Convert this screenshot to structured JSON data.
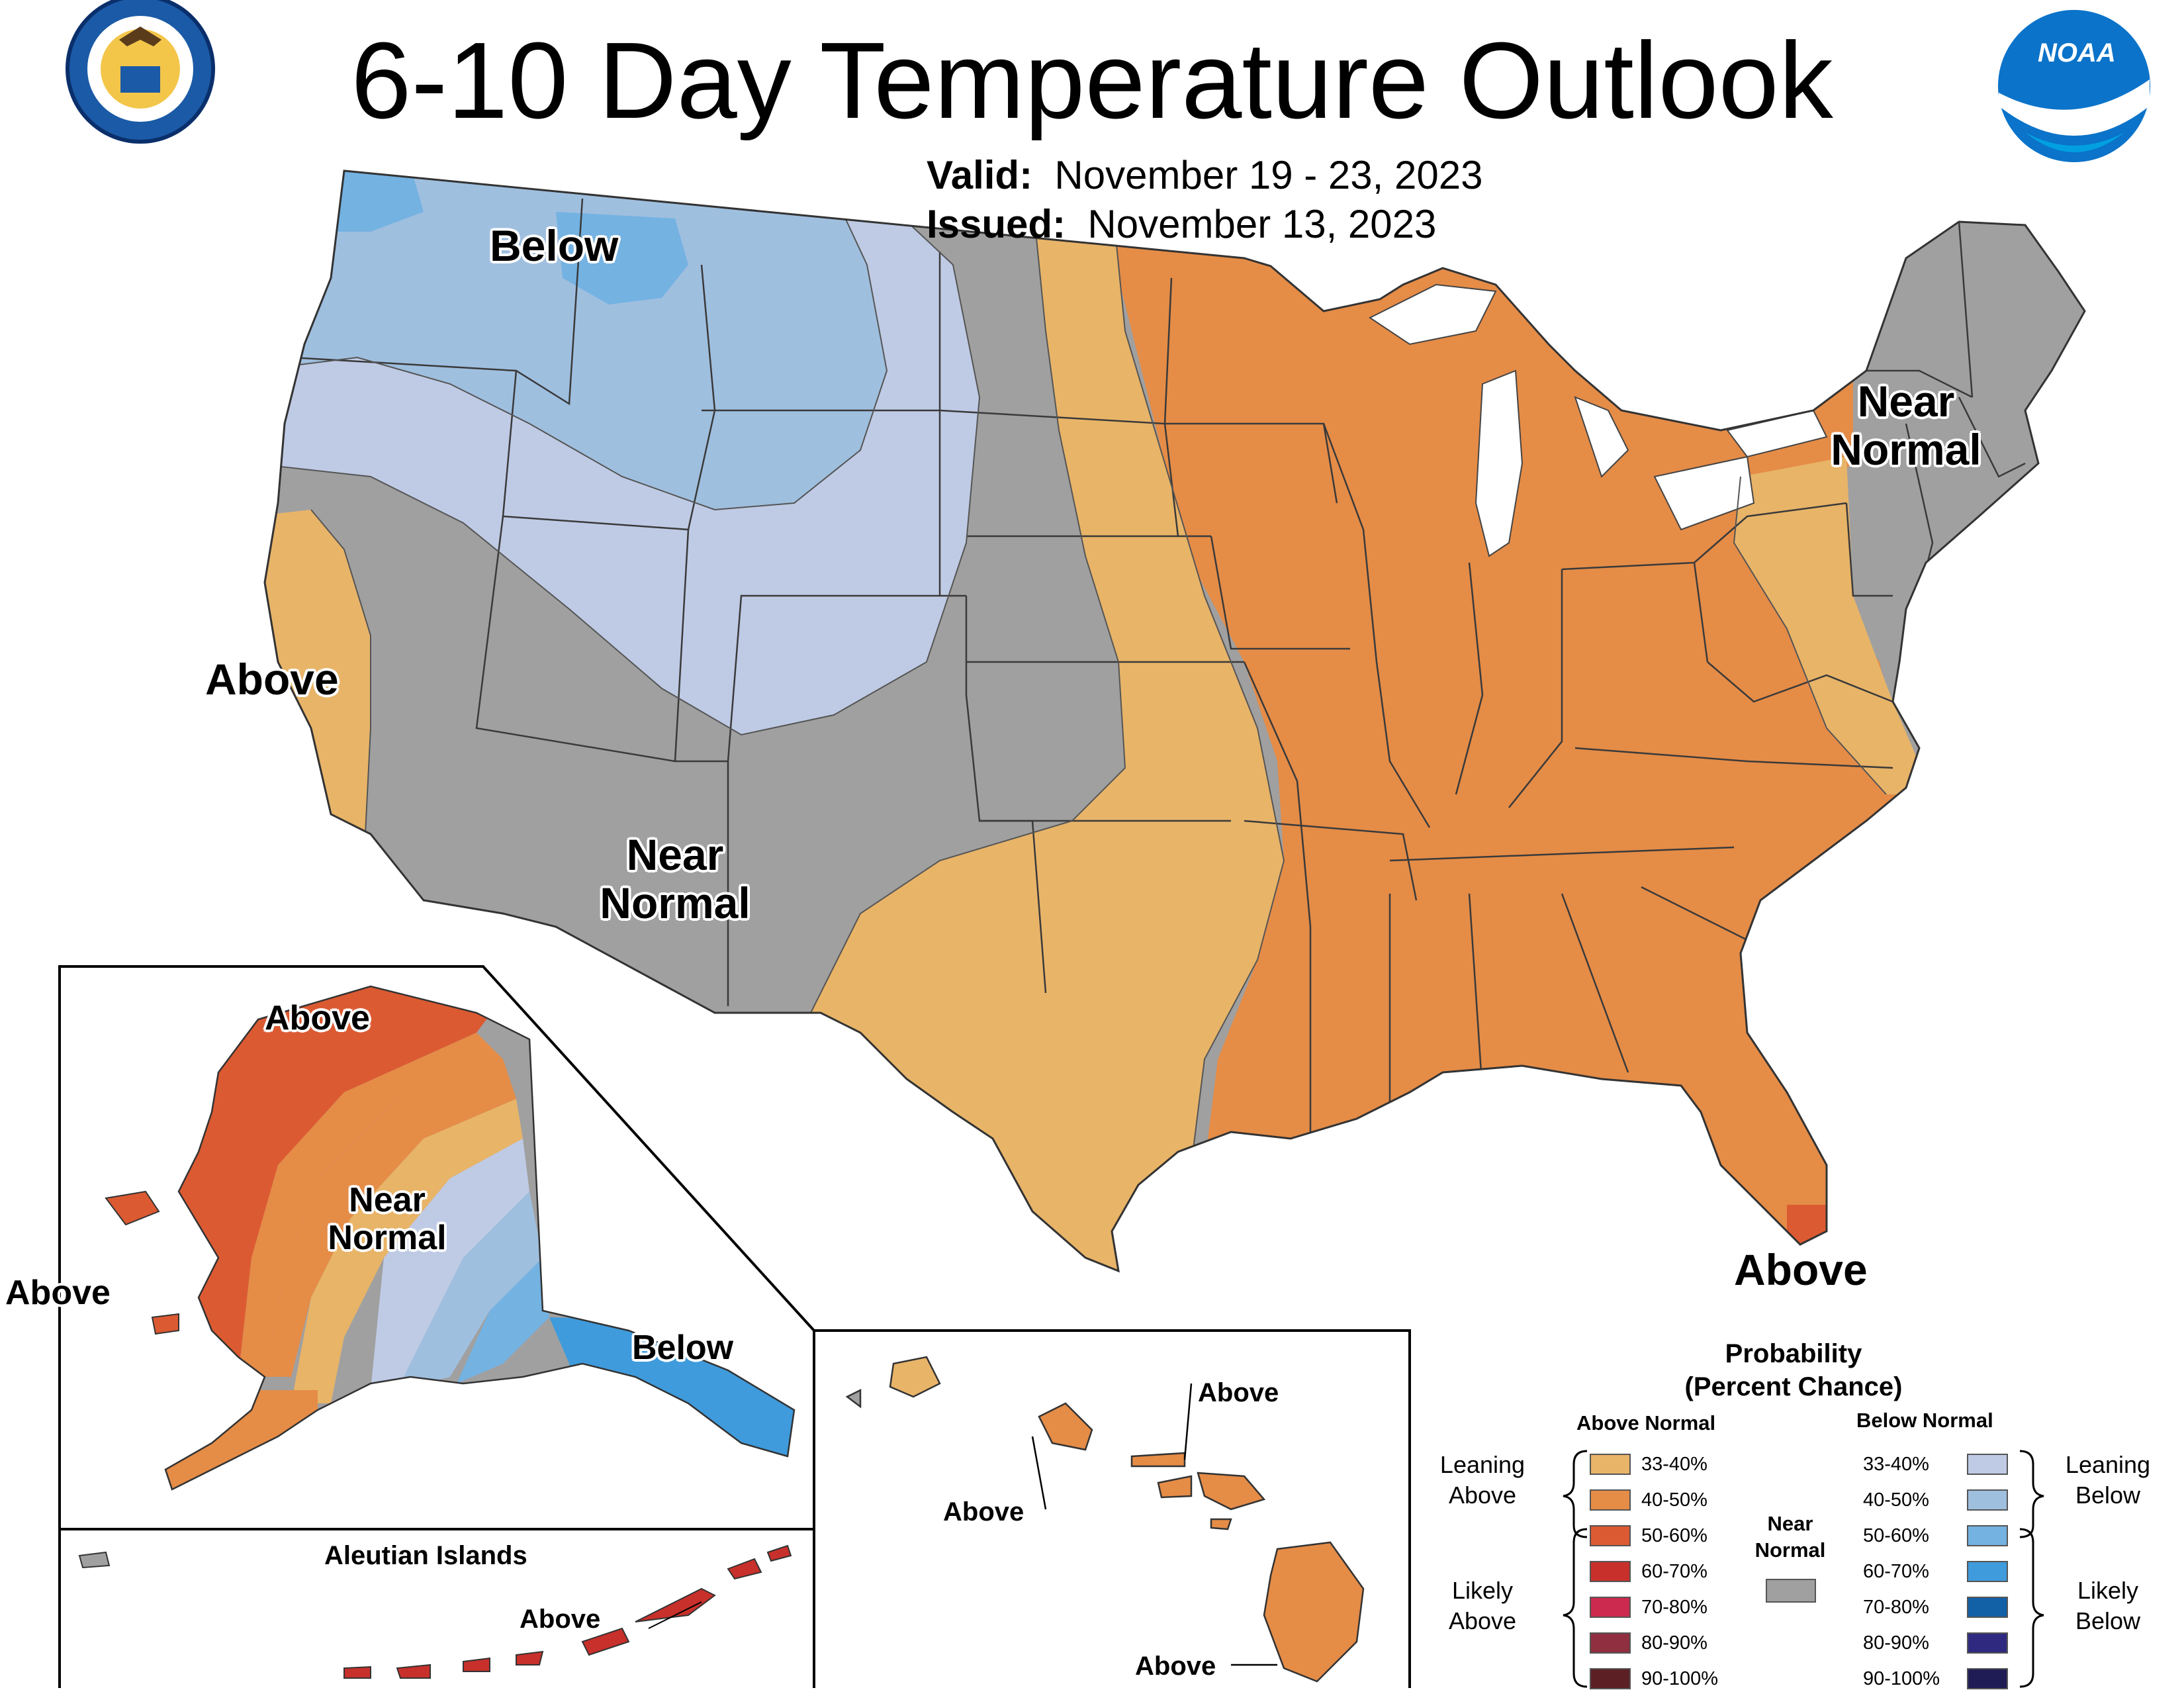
{
  "header": {
    "title": "6-10 Day Temperature Outlook",
    "valid_label": "Valid:",
    "valid_value": "November 19 - 23, 2023",
    "issued_label": "Issued:",
    "issued_value": "November 13, 2023"
  },
  "logos": {
    "left": "Department of Commerce seal",
    "right": "NOAA logo",
    "right_text": "NOAA"
  },
  "map_labels": {
    "below_nw": "Below",
    "above_west": "Above",
    "near_normal_sw_1": "Near",
    "near_normal_sw_2": "Normal",
    "near_normal_ne_1": "Near",
    "near_normal_ne_2": "Normal",
    "above_se": "Above",
    "ak_above_north": "Above",
    "ak_near_1": "Near",
    "ak_near_2": "Normal",
    "ak_above_west": "Above",
    "ak_below_se": "Below",
    "aleutian_title": "Aleutian Islands",
    "aleutian_above": "Above",
    "hi_above_1": "Above",
    "hi_above_2": "Above",
    "hi_above_3": "Above"
  },
  "legend": {
    "title_1": "Probability",
    "title_2": "(Percent Chance)",
    "above_head": "Above Normal",
    "below_head": "Below Normal",
    "near_1": "Near",
    "near_2": "Normal",
    "leaning_above_1": "Leaning",
    "leaning_above_2": "Above",
    "likely_above_1": "Likely",
    "likely_above_2": "Above",
    "leaning_below_1": "Leaning",
    "leaning_below_2": "Below",
    "likely_below_1": "Likely",
    "likely_below_2": "Below",
    "above": [
      {
        "label": "33-40%",
        "color": "#e8b468"
      },
      {
        "label": "40-50%",
        "color": "#e58c47"
      },
      {
        "label": "50-60%",
        "color": "#dc5a32"
      },
      {
        "label": "60-70%",
        "color": "#c8302b"
      },
      {
        "label": "70-80%",
        "color": "#cc2a4e"
      },
      {
        "label": "80-90%",
        "color": "#8f2f3f"
      },
      {
        "label": "90-100%",
        "color": "#5c1f24"
      }
    ],
    "below": [
      {
        "label": "33-40%",
        "color": "#bfcbe5"
      },
      {
        "label": "40-50%",
        "color": "#9fbfdf"
      },
      {
        "label": "50-60%",
        "color": "#74b2e2"
      },
      {
        "label": "60-70%",
        "color": "#3f9bdc"
      },
      {
        "label": "70-80%",
        "color": "#1260a6"
      },
      {
        "label": "80-90%",
        "color": "#2f2a80"
      },
      {
        "label": "90-100%",
        "color": "#1f1c55"
      }
    ],
    "near_color": "#a0a0a0"
  }
}
